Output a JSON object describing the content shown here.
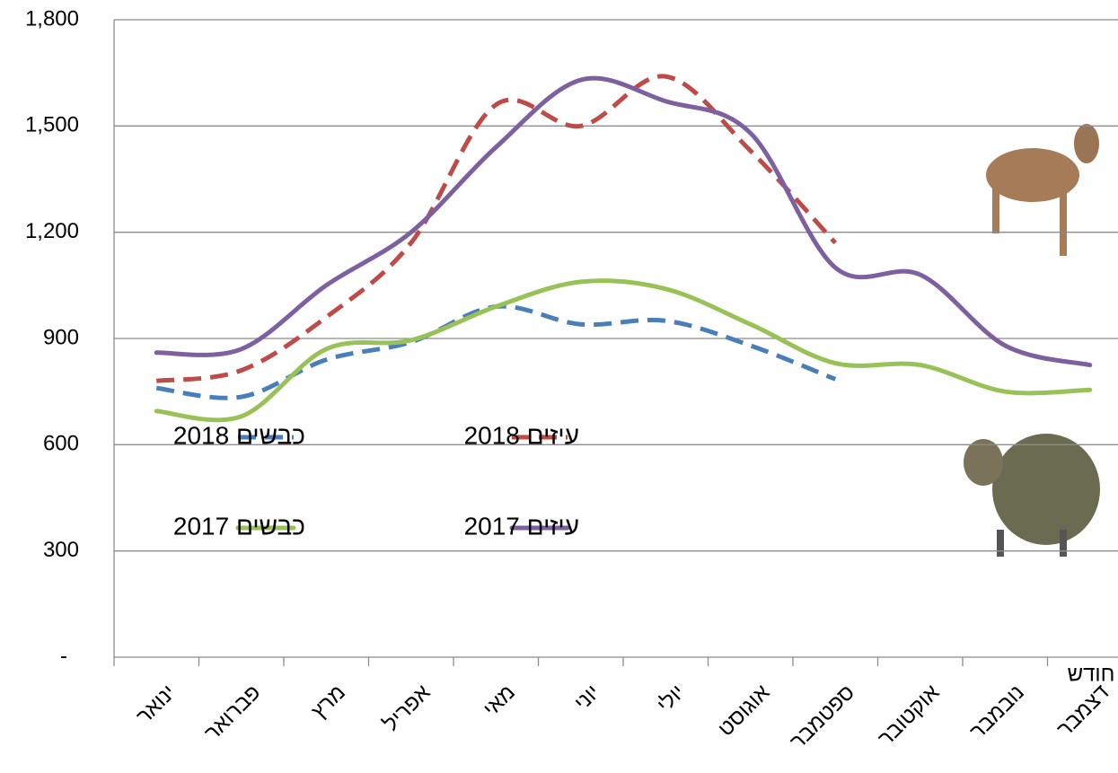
{
  "chart_data": {
    "type": "line",
    "x_label": "חודש",
    "categories": [
      "ינואר",
      "פברואר",
      "מרץ",
      "אפריל",
      "מאי",
      "יוני",
      "יולי",
      "אוגוסט",
      "ספטמבר",
      "אוקטובר",
      "נובמבר",
      "דצמבר"
    ],
    "ylim": [
      0,
      1800
    ],
    "yticks": [
      {
        "value": 0,
        "label": "-"
      },
      300,
      600,
      900,
      {
        "value": 1200,
        "label": "1,200"
      },
      {
        "value": 1500,
        "label": "1,500"
      },
      {
        "value": 1800,
        "label": "1,800"
      }
    ],
    "grid": true,
    "smooth": true,
    "series": [
      {
        "name": "כבשים 2018",
        "color": "#4a7ebb",
        "dashed": true,
        "values": [
          760,
          735,
          840,
          890,
          990,
          940,
          950,
          880,
          785,
          null,
          null,
          null
        ]
      },
      {
        "name": "עיזים 2018",
        "color": "#be4b48",
        "dashed": true,
        "values": [
          780,
          810,
          960,
          1170,
          1560,
          1500,
          1640,
          1430,
          1170,
          null,
          null,
          null
        ]
      },
      {
        "name": "כבשים 2017",
        "color": "#98c255",
        "dashed": false,
        "values": [
          695,
          680,
          870,
          895,
          990,
          1060,
          1040,
          940,
          830,
          825,
          750,
          755
        ]
      },
      {
        "name": "עיזים 2017",
        "color": "#7d60a0",
        "dashed": false,
        "values": [
          860,
          870,
          1050,
          1200,
          1440,
          1630,
          1570,
          1480,
          1100,
          1080,
          880,
          825
        ]
      }
    ]
  }
}
